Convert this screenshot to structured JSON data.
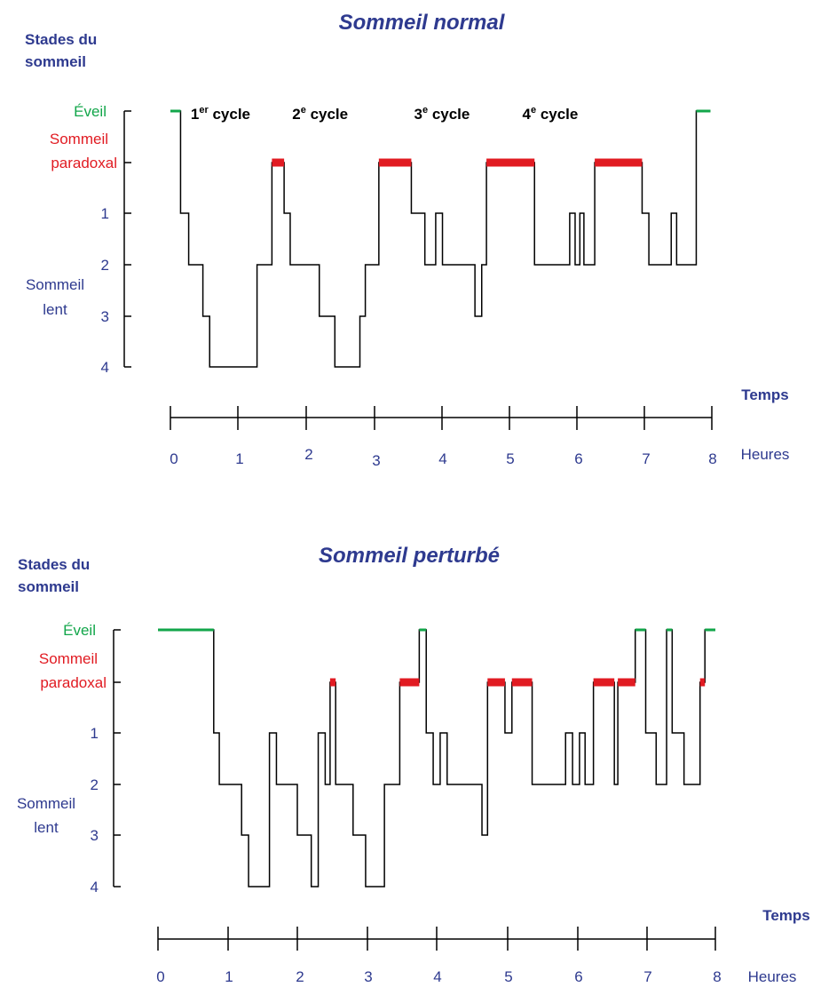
{
  "chart_data": [
    {
      "type": "line",
      "title": "Sommeil normal",
      "ylabel": "Stades du sommeil",
      "xlabel": "Temps",
      "x_unit": "Heures",
      "x_ticks": [
        "0",
        "1",
        "2",
        "3",
        "4",
        "5",
        "6",
        "7",
        "8"
      ],
      "xlim": [
        0,
        8
      ],
      "y_categories": [
        "Éveil",
        "Sommeil paradoxal",
        "1",
        "2",
        "3",
        "4"
      ],
      "y_group_label": "Sommeil lent",
      "cycles": [
        {
          "label": "1",
          "sup": "er",
          "text": " cycle",
          "x": 0.3
        },
        {
          "label": "2",
          "sup": "e",
          "text": " cycle",
          "x": 1.8
        },
        {
          "label": "3",
          "sup": "e",
          "text": " cycle",
          "x": 3.6
        },
        {
          "label": "4",
          "sup": "e",
          "text": " cycle",
          "x": 5.2
        }
      ],
      "colors": {
        "wake": "#12a64a",
        "rem": "#e11b22",
        "line": "#000000",
        "text": "#2e3a8f"
      },
      "hypnogram": [
        [
          0.0,
          "W"
        ],
        [
          0.15,
          "1"
        ],
        [
          0.27,
          "2"
        ],
        [
          0.48,
          "3"
        ],
        [
          0.58,
          "4"
        ],
        [
          1.28,
          "2"
        ],
        [
          1.5,
          "R"
        ],
        [
          1.68,
          "1"
        ],
        [
          1.77,
          "2"
        ],
        [
          2.2,
          "3"
        ],
        [
          2.43,
          "4"
        ],
        [
          2.8,
          "3"
        ],
        [
          2.88,
          "2"
        ],
        [
          3.08,
          "R"
        ],
        [
          3.56,
          "1"
        ],
        [
          3.76,
          "2"
        ],
        [
          3.92,
          "1"
        ],
        [
          4.02,
          "2"
        ],
        [
          4.5,
          "3"
        ],
        [
          4.6,
          "2"
        ],
        [
          4.67,
          "R"
        ],
        [
          5.38,
          "2"
        ],
        [
          5.9,
          "1"
        ],
        [
          5.98,
          "2"
        ],
        [
          6.05,
          "1"
        ],
        [
          6.11,
          "2"
        ],
        [
          6.27,
          "R"
        ],
        [
          6.97,
          "1"
        ],
        [
          7.07,
          "2"
        ],
        [
          7.4,
          "1"
        ],
        [
          7.48,
          "2"
        ],
        [
          7.77,
          "W"
        ],
        [
          7.98,
          "end"
        ]
      ]
    },
    {
      "type": "line",
      "title": "Sommeil perturbé",
      "ylabel": "Stades du sommeil",
      "xlabel": "Temps",
      "x_unit": "Heures",
      "x_ticks": [
        "0",
        "1",
        "2",
        "3",
        "4",
        "5",
        "6",
        "7",
        "8"
      ],
      "xlim": [
        0,
        8
      ],
      "y_categories": [
        "Éveil",
        "Sommeil paradoxal",
        "1",
        "2",
        "3",
        "4"
      ],
      "y_group_label": "Sommeil lent",
      "colors": {
        "wake": "#12a64a",
        "rem": "#e11b22",
        "line": "#000000",
        "text": "#2e3a8f"
      },
      "hypnogram": [
        [
          0.0,
          "W"
        ],
        [
          0.8,
          "1"
        ],
        [
          0.88,
          "2"
        ],
        [
          1.2,
          "3"
        ],
        [
          1.3,
          "4"
        ],
        [
          1.6,
          "1"
        ],
        [
          1.7,
          "2"
        ],
        [
          2.0,
          "3"
        ],
        [
          2.2,
          "4"
        ],
        [
          2.3,
          "1"
        ],
        [
          2.4,
          "2"
        ],
        [
          2.47,
          "R"
        ],
        [
          2.55,
          "2"
        ],
        [
          2.8,
          "3"
        ],
        [
          2.98,
          "4"
        ],
        [
          3.25,
          "2"
        ],
        [
          3.47,
          "R"
        ],
        [
          3.75,
          "W"
        ],
        [
          3.85,
          "1"
        ],
        [
          3.95,
          "2"
        ],
        [
          4.05,
          "1"
        ],
        [
          4.15,
          "2"
        ],
        [
          4.65,
          "3"
        ],
        [
          4.73,
          "R"
        ],
        [
          4.98,
          "1"
        ],
        [
          5.08,
          "R"
        ],
        [
          5.37,
          "2"
        ],
        [
          5.85,
          "1"
        ],
        [
          5.95,
          "2"
        ],
        [
          6.05,
          "1"
        ],
        [
          6.13,
          "2"
        ],
        [
          6.25,
          "R"
        ],
        [
          6.55,
          "2"
        ],
        [
          6.6,
          "R"
        ],
        [
          6.85,
          "W"
        ],
        [
          7.0,
          "1"
        ],
        [
          7.15,
          "2"
        ],
        [
          7.3,
          "W"
        ],
        [
          7.38,
          "1"
        ],
        [
          7.55,
          "2"
        ],
        [
          7.78,
          "R"
        ],
        [
          7.85,
          "W"
        ],
        [
          8.0,
          "end"
        ]
      ]
    }
  ]
}
